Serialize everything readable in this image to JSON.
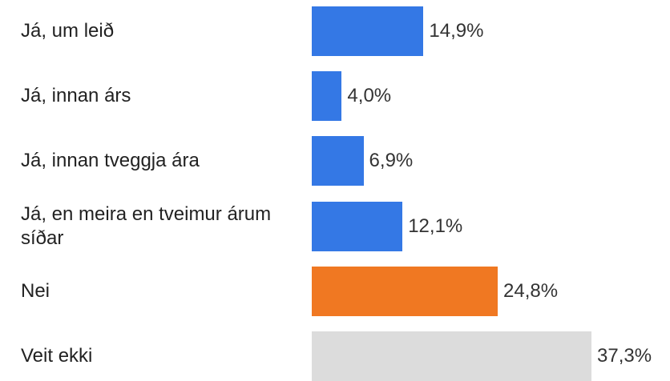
{
  "chart_data": {
    "type": "bar",
    "orientation": "horizontal",
    "categories": [
      "Já, um leið",
      "Já, innan árs",
      "Já, innan tveggja ára",
      "Já, en meira en tveimur árum síðar",
      "Nei",
      "Veit ekki"
    ],
    "values": [
      14.9,
      4.0,
      6.9,
      12.1,
      24.8,
      37.3
    ],
    "value_labels": [
      "14,9%",
      "4,0%",
      "6,9%",
      "12,1%",
      "24,8%",
      "37,3%"
    ],
    "colors": [
      "#3478e5",
      "#3478e5",
      "#3478e5",
      "#3478e5",
      "#f07822",
      "#dcdcdc"
    ]
  }
}
